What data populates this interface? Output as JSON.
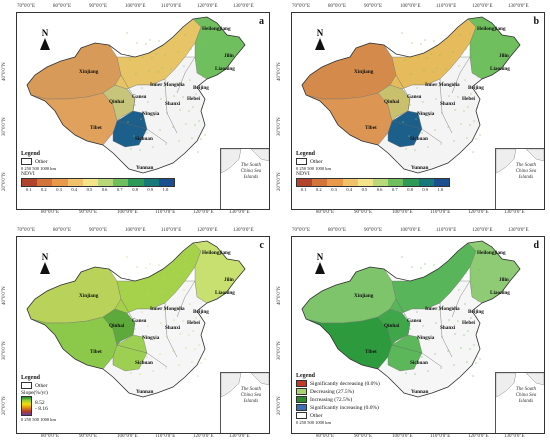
{
  "ticks_top": [
    "70°0'0\"E",
    "80°0'0\"E",
    "90°0'0\"E",
    "100°0'0\"E",
    "110°0'0\"E",
    "120°0'0\"E",
    "130°0'0\"E"
  ],
  "ticks_bottom": [
    "80°0'0\"E",
    "90°0'0\"E",
    "100°0'0\"E",
    "110°0'0\"E",
    "120°0'0\"E",
    "130°0'0\"E"
  ],
  "ticks_left": [
    "40°0'0\"N",
    "30°0'0\"N",
    "20°0'0\"N"
  ],
  "ticks_right": [
    "50°0'0\"N",
    "40°0'0\"N",
    "30°0'0\"N",
    "20°0'0\"N"
  ],
  "north_label": "N",
  "provinces": [
    "Heilongjiang",
    "Jilin",
    "Liaoning",
    "Xinjiang",
    "Inner Mongolia",
    "Beijing",
    "Hebei",
    "Gansu",
    "Qinhai",
    "Ningxia",
    "Shanxi",
    "Tibet",
    "Sichuan",
    "Yunnan"
  ],
  "inset_label": "The South China Sea Islands",
  "colors": {
    "ndvi": [
      "#b2442e",
      "#d3743a",
      "#e89a4a",
      "#f0c36a",
      "#f3e489",
      "#b9d879",
      "#6fbf5e",
      "#2e9a57",
      "#17797a",
      "#1c4f8f"
    ],
    "trend": [
      "#c0392b",
      "#a8d46f",
      "#2e8b2e",
      "#3b6fb6"
    ]
  },
  "panels": {
    "a": {
      "letter": "a",
      "legend_title": "Legend",
      "other_label": "Other",
      "scale_label": "0  250  500       1000 km",
      "var_label": "NDVI",
      "ramp_ticks": [
        "0.1",
        "0.2",
        "0.3",
        "0.4",
        "0.5",
        "0.6",
        "0.7",
        "0.8",
        "0.9",
        "1.0"
      ]
    },
    "b": {
      "letter": "b",
      "legend_title": "Legend",
      "other_label": "Other",
      "scale_label": "0  250  500       1000 km",
      "var_label": "NDVI",
      "ramp_ticks": [
        "0.1",
        "0.2",
        "0.3",
        "0.4",
        "0.5",
        "0.6",
        "0.7",
        "0.8",
        "0.9",
        "1.0"
      ]
    },
    "c": {
      "letter": "c",
      "legend_title": "Legend",
      "other_label": "Other",
      "var_label": "Slope(%/yr)",
      "slope_max": "8.52",
      "slope_min": "- 8.16",
      "scale_label": "0  250  500       1000 km"
    },
    "d": {
      "letter": "d",
      "legend_title": "Legend",
      "trend_items": [
        "Significantly decreasing (0.0%)",
        "Decreasing (27.5%)",
        "Increasing (72.5%)",
        "Significantly increasing (0.0%)"
      ],
      "other_label": "Other",
      "scale_label": "0  250  500       1000 km"
    }
  }
}
